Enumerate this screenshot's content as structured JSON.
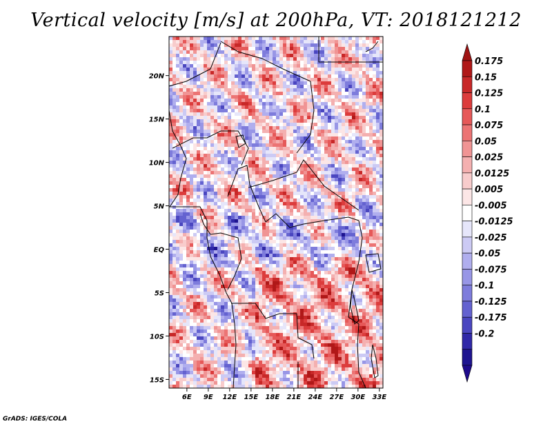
{
  "title": "Vertical velocity [m/s] at 200hPa, VT: 2018121212",
  "footer": "GrADS: IGES/COLA",
  "chart_data": {
    "type": "heatmap",
    "variable": "Vertical velocity",
    "units": "m/s",
    "level": "200hPa",
    "valid_time": "2018121212",
    "lon_range": [
      3.5,
      33.5
    ],
    "lat_range": [
      -16,
      24.5
    ],
    "x_ticks": [
      "6E",
      "9E",
      "12E",
      "15E",
      "18E",
      "21E",
      "24E",
      "27E",
      "30E",
      "33E"
    ],
    "x_tick_values": [
      6,
      9,
      12,
      15,
      18,
      21,
      24,
      27,
      30,
      33
    ],
    "y_ticks": [
      "20N",
      "15N",
      "10N",
      "5N",
      "EQ",
      "5S",
      "10S",
      "15S"
    ],
    "y_tick_values": [
      20,
      15,
      10,
      5,
      0,
      -5,
      -10,
      -15
    ],
    "colorbar": {
      "labels": [
        "0.175",
        "0.15",
        "0.125",
        "0.1",
        "0.075",
        "0.05",
        "0.025",
        "0.0125",
        "0.005",
        "-0.005",
        "-0.0125",
        "-0.025",
        "-0.05",
        "-0.075",
        "-0.1",
        "-0.125",
        "-0.175",
        "-0.2"
      ],
      "colors": [
        "#b01818",
        "#c82828",
        "#dc3c3c",
        "#e65858",
        "#ec7474",
        "#f09494",
        "#f4b0b0",
        "#f8cccc",
        "#fce6e6",
        "#ffffff",
        "#e6e6fa",
        "#cccaf4",
        "#b0aeee",
        "#9896e6",
        "#7e7cdc",
        "#6462d0",
        "#4a46c0",
        "#3028a8",
        "#1e1490"
      ],
      "arrow_top_color": "#a01414",
      "arrow_bottom_color": "#1e0a8c"
    }
  }
}
